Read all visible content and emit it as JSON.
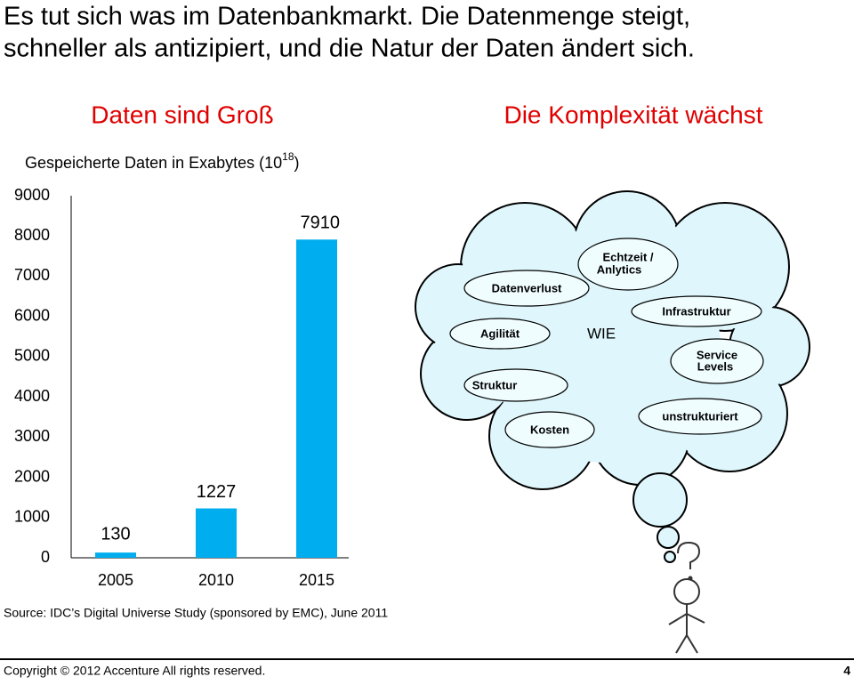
{
  "title": [
    "Es tut sich was im Datenbankmarkt. Die Datenmenge steigt,",
    "schneller als antizipiert, und die Natur der Daten ändert sich."
  ],
  "left_heading": "Daten sind Groß",
  "right_heading": "Die Komplexität wächst",
  "chart_data": {
    "type": "bar",
    "subtitle": {
      "text": "Gespeicherte Daten in Exabytes (10",
      "sup": "18",
      "tail": ")"
    },
    "categories": [
      "2005",
      "2010",
      "2015"
    ],
    "values": [
      130,
      1227,
      7910
    ],
    "color": "#00aeef",
    "ylim": [
      0,
      9000
    ],
    "yticks": [
      0,
      1000,
      2000,
      3000,
      4000,
      5000,
      6000,
      7000,
      8000,
      9000
    ]
  },
  "cloud": {
    "echtzeit": [
      "Echtzeit /",
      "Anlytics"
    ],
    "datenverlust": "Datenverlust",
    "infrastruktur": "Infrastruktur",
    "agilitaet": "Agilität",
    "wie": "WIE",
    "service": [
      "Service",
      "Levels"
    ],
    "struktur": "Struktur",
    "unstrukturiert": "unstrukturiert",
    "kosten": "Kosten"
  },
  "source": "Source: IDC’s Digital Universe Study (sponsored by EMC), June 2011",
  "footer": {
    "copyright": "Copyright © 2012 Accenture  All rights reserved.",
    "page": "4"
  }
}
